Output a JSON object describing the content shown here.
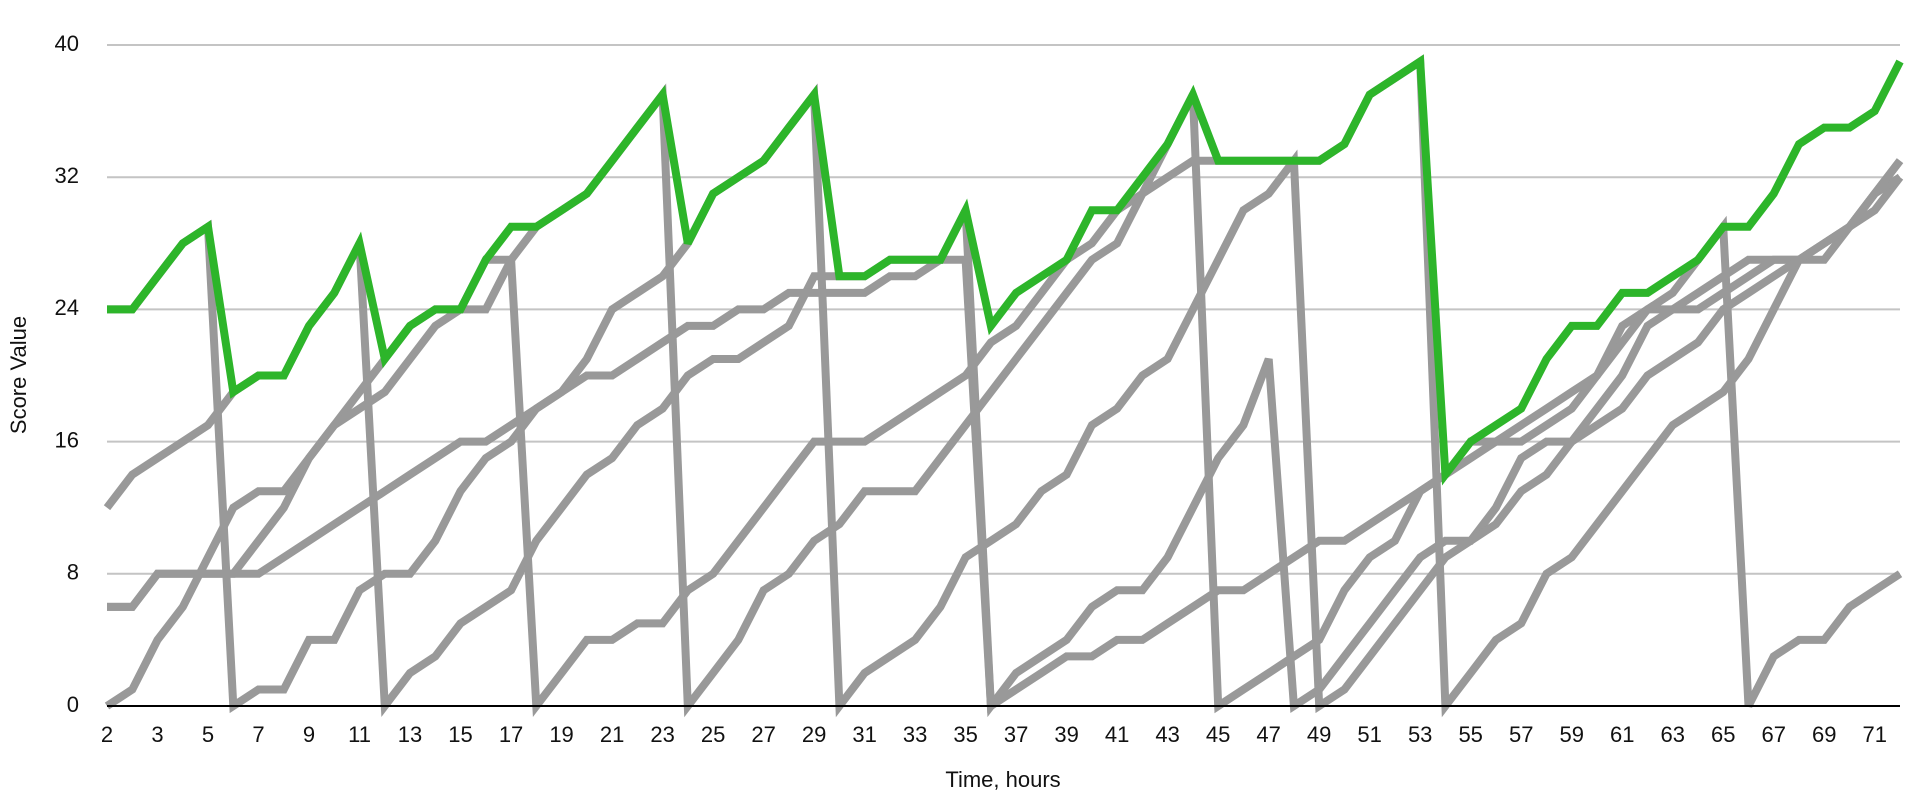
{
  "chart_data": {
    "type": "line",
    "x_label": "Time, hours",
    "y_label": "Score Value",
    "categories": [
      2,
      null,
      3,
      null,
      5,
      null,
      7,
      null,
      9,
      null,
      11,
      null,
      13,
      null,
      15,
      null,
      17,
      null,
      19,
      null,
      21,
      null,
      23,
      null,
      25,
      null,
      27,
      null,
      29,
      null,
      31,
      null,
      33,
      null,
      35,
      null,
      37,
      null,
      39,
      null,
      41,
      null,
      43,
      null,
      45,
      null,
      47,
      null,
      49,
      null,
      51,
      null,
      53,
      null,
      55,
      null,
      57,
      null,
      59,
      null,
      61,
      null,
      63,
      null,
      65,
      null,
      67,
      null,
      69,
      null,
      71,
      null
    ],
    "ylim": [
      0,
      40
    ],
    "yticks": [
      0,
      8,
      16,
      24,
      32,
      40
    ],
    "grid": true,
    "series": [
      {
        "color": "#999999",
        "values": [
          12,
          14,
          15,
          16,
          17,
          19,
          20,
          20,
          23,
          25,
          28,
          0,
          2,
          3,
          5,
          6,
          7,
          10,
          12,
          14,
          15,
          17,
          18,
          20,
          21,
          21,
          22,
          23,
          26,
          26,
          26,
          27,
          27,
          27,
          30,
          0,
          2,
          3,
          4,
          6,
          7,
          7,
          9,
          12,
          15,
          17,
          21,
          0,
          1,
          3,
          5,
          7,
          9,
          10,
          10,
          12,
          15,
          16,
          16,
          18,
          20,
          23,
          24,
          24,
          25,
          26,
          27,
          27,
          27,
          29,
          30,
          32
        ]
      },
      {
        "color": "#999999",
        "values": [
          6,
          6,
          8,
          8,
          8,
          8,
          10,
          12,
          15,
          17,
          19,
          21,
          23,
          24,
          24,
          27,
          27,
          0,
          2,
          4,
          4,
          5,
          5,
          7,
          8,
          10,
          12,
          14,
          16,
          16,
          16,
          17,
          18,
          19,
          20,
          22,
          23,
          25,
          27,
          28,
          30,
          31,
          32,
          33,
          33,
          33,
          33,
          33,
          33,
          34,
          37,
          38,
          39,
          0,
          2,
          4,
          5,
          8,
          9,
          11,
          13,
          15,
          17,
          18,
          19,
          21,
          24,
          27,
          28,
          29,
          31,
          33
        ]
      },
      {
        "color": "#999999",
        "values": [
          0,
          1,
          4,
          6,
          9,
          12,
          13,
          13,
          15,
          17,
          18,
          19,
          21,
          23,
          24,
          24,
          27,
          29,
          30,
          31,
          33,
          35,
          37,
          0,
          2,
          4,
          7,
          8,
          10,
          11,
          13,
          13,
          13,
          15,
          17,
          19,
          21,
          23,
          25,
          27,
          28,
          31,
          34,
          37,
          0,
          1,
          2,
          3,
          4,
          7,
          9,
          10,
          13,
          14,
          16,
          16,
          16,
          17,
          18,
          20,
          23,
          24,
          24,
          25,
          26,
          27,
          27,
          27,
          28,
          29,
          31,
          32
        ]
      },
      {
        "color": "#999999",
        "values": [
          24,
          24,
          26,
          28,
          29,
          0,
          1,
          1,
          4,
          4,
          7,
          8,
          8,
          10,
          13,
          15,
          16,
          18,
          19,
          21,
          24,
          25,
          26,
          28,
          31,
          32,
          33,
          35,
          37,
          0,
          2,
          3,
          4,
          6,
          9,
          10,
          11,
          13,
          14,
          17,
          18,
          20,
          21,
          24,
          27,
          30,
          31,
          33,
          0,
          1,
          3,
          5,
          7,
          9,
          10,
          11,
          13,
          14,
          16,
          17,
          18,
          20,
          21,
          22,
          24,
          25,
          26,
          27,
          28,
          29,
          31,
          33
        ]
      },
      {
        "color": "#999999",
        "values": [
          6,
          6,
          8,
          8,
          8,
          8,
          8,
          9,
          10,
          11,
          12,
          13,
          14,
          15,
          16,
          16,
          17,
          18,
          19,
          20,
          20,
          21,
          22,
          23,
          23,
          24,
          24,
          25,
          25,
          25,
          25,
          26,
          26,
          27,
          27,
          0,
          1,
          2,
          3,
          3,
          4,
          4,
          5,
          6,
          7,
          7,
          8,
          9,
          10,
          10,
          11,
          12,
          13,
          14,
          15,
          16,
          17,
          18,
          19,
          20,
          22,
          24,
          25,
          27,
          29,
          0,
          3,
          4,
          4,
          6,
          7,
          8
        ]
      },
      {
        "color": "#2db52a",
        "values": [
          24,
          24,
          26,
          28,
          29,
          19,
          20,
          20,
          23,
          25,
          28,
          21,
          23,
          24,
          24,
          27,
          29,
          29,
          30,
          31,
          33,
          35,
          37,
          28,
          31,
          32,
          33,
          35,
          37,
          26,
          26,
          27,
          27,
          27,
          30,
          23,
          25,
          26,
          27,
          30,
          30,
          32,
          34,
          37,
          33,
          33,
          33,
          33,
          33,
          34,
          37,
          38,
          39,
          14,
          16,
          17,
          18,
          21,
          23,
          23,
          25,
          25,
          26,
          27,
          29,
          29,
          31,
          34,
          35,
          35,
          36,
          39
        ]
      }
    ]
  }
}
